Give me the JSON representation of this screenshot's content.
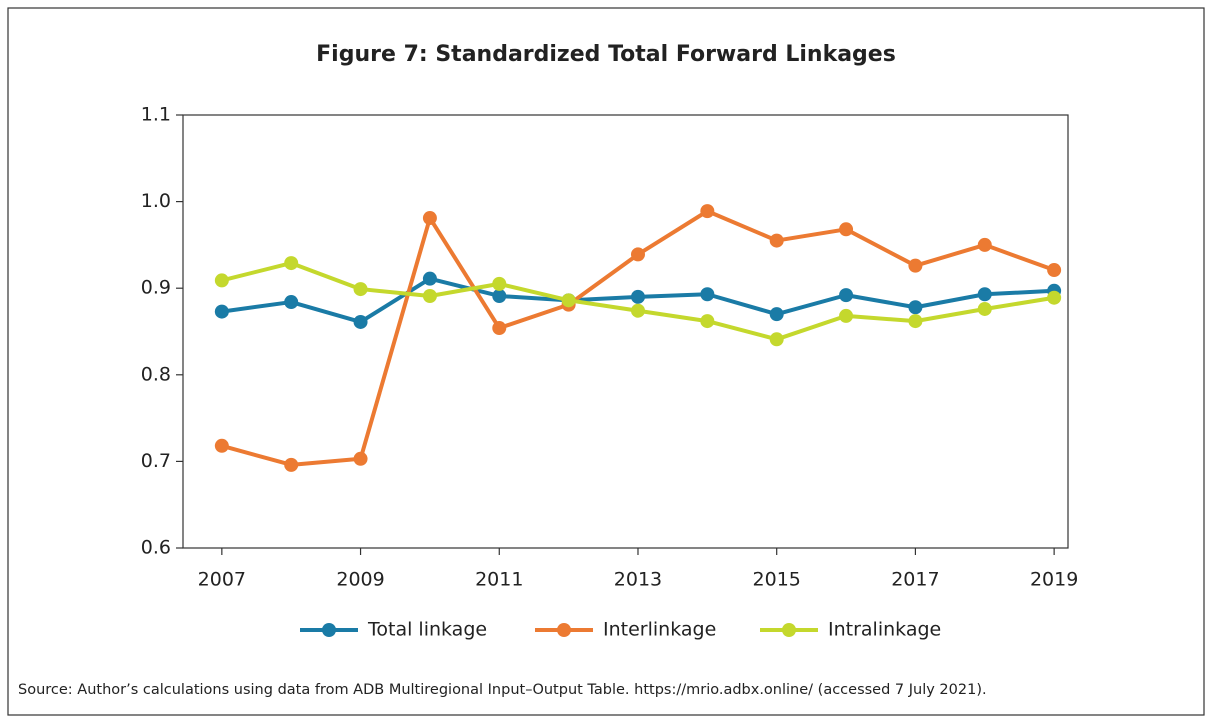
{
  "chart_data": {
    "type": "line",
    "title": "Figure 7: Standardized Total Forward Linkages",
    "x": [
      2007,
      2008,
      2009,
      2010,
      2011,
      2012,
      2013,
      2014,
      2015,
      2016,
      2017,
      2018,
      2019
    ],
    "series": [
      {
        "name": "Total linkage",
        "color": "#1a7ba6",
        "values": [
          0.873,
          0.884,
          0.861,
          0.911,
          0.891,
          0.886,
          0.89,
          0.893,
          0.87,
          0.892,
          0.878,
          0.893,
          0.897
        ]
      },
      {
        "name": "Interlinkage",
        "color": "#ec7a32",
        "values": [
          0.718,
          0.696,
          0.703,
          0.981,
          0.854,
          0.881,
          0.939,
          0.989,
          0.955,
          0.968,
          0.926,
          0.95,
          0.921
        ]
      },
      {
        "name": "Intralinkage",
        "color": "#c4d82d",
        "values": [
          0.909,
          0.929,
          0.899,
          0.891,
          0.905,
          0.886,
          0.874,
          0.862,
          0.841,
          0.868,
          0.862,
          0.876,
          0.889
        ]
      }
    ],
    "xlim": [
      2006.44,
      2019.2
    ],
    "xticks": [
      2007,
      2009,
      2011,
      2013,
      2015,
      2017,
      2019
    ],
    "ylim": [
      0.6,
      1.1
    ],
    "yticks": [
      0.6,
      0.7,
      0.8,
      0.9,
      {
        "value": 1.0,
        "label": "1.0"
      },
      1.1
    ],
    "legend": "bottom",
    "source": "Source: Author’s calculations using data from ADB Multiregional Input–Output Table. https://mrio.adbx.online/ (accessed 7 July 2021)."
  }
}
